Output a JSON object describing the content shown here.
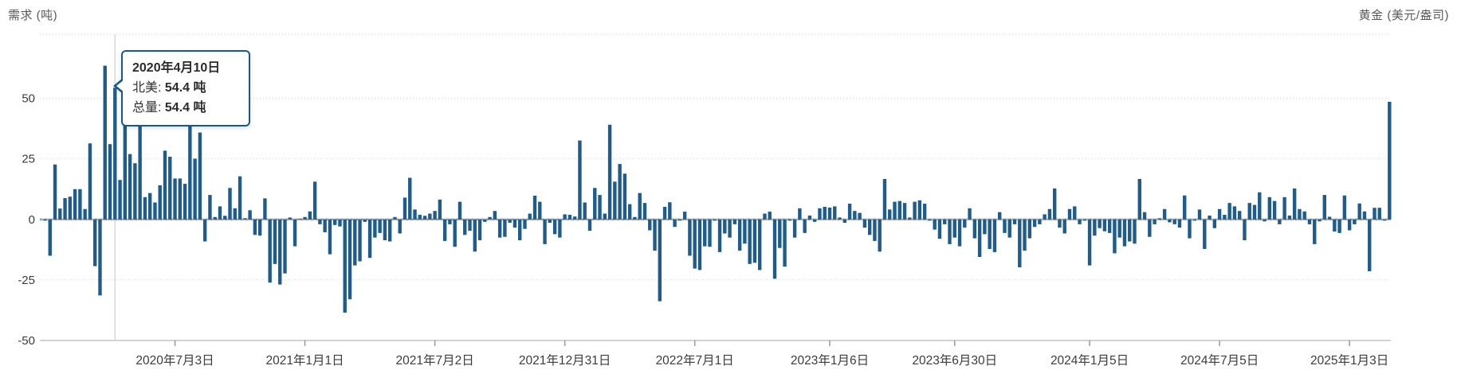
{
  "header": {
    "left_label": "需求 (吨)",
    "right_label": "黄金 (美元/盎司)"
  },
  "tooltip": {
    "title": "2020年4月10日",
    "rows": [
      {
        "label": "北美:",
        "value": "54.4 吨"
      },
      {
        "label": "总量:",
        "value": "54.4 吨"
      }
    ]
  },
  "colors": {
    "bar": "#1f5c8c",
    "tooltip_border": "#17598f",
    "gridline": "#cccccc",
    "baseline": "#c4c4c4",
    "zero_line": "#b5b5b5",
    "zero_line_dash": "#9a9a9a",
    "crosshair": "#d8d8d8",
    "axis_text": "#3c3c3c",
    "header_text": "#595959"
  },
  "chart_data": {
    "type": "bar",
    "title": "",
    "ylabel": "需求 (吨)",
    "ylabel_right": "黄金 (美元/盎司)",
    "unit": "吨",
    "ylim": [
      -50,
      76.5
    ],
    "y_ticks": [
      50,
      25,
      0,
      -25,
      -50
    ],
    "grid": "dotted horizontal",
    "legend_position": "none",
    "highlight_index": 14,
    "x_ticks": [
      {
        "label": "2020年7月3日",
        "index": 26
      },
      {
        "label": "2021年1月1日",
        "index": 52
      },
      {
        "label": "2021年7月2日",
        "index": 78
      },
      {
        "label": "2021年12月31日",
        "index": 104
      },
      {
        "label": "2022年7月1日",
        "index": 130
      },
      {
        "label": "2023年1月6日",
        "index": 157
      },
      {
        "label": "2023年6月30日",
        "index": 182
      },
      {
        "label": "2024年1月5日",
        "index": 209
      },
      {
        "label": "2024年7月5日",
        "index": 235
      },
      {
        "label": "2025年1月3日",
        "index": 261
      }
    ],
    "series": [
      {
        "name": "北美",
        "color": "#1f5c8c",
        "values": [
          -0.5,
          -15,
          22.7,
          4.5,
          8.8,
          9.4,
          12.5,
          12.5,
          4.3,
          31.4,
          -19.3,
          -31.4,
          63.5,
          31.1,
          54.4,
          16.3,
          42,
          27,
          23.2,
          44,
          9.2,
          10.9,
          7,
          14.1,
          28.4,
          25.9,
          16.9,
          16.9,
          14.7,
          39.4,
          25.1,
          35.9,
          -9.1,
          10.1,
          1,
          5.4,
          1.5,
          13,
          4.6,
          17.8,
          0.5,
          3.8,
          -6.4,
          -6.7,
          8.7,
          -26.1,
          -18.4,
          -26.9,
          -22.3,
          0.8,
          -11.1,
          0.3,
          1,
          3.3,
          15.6,
          -2,
          -5.3,
          -14.4,
          -2.3,
          -2.9,
          -38.5,
          -33,
          -19,
          -17.3,
          -1,
          -15.9,
          -7.5,
          -5.6,
          -8.6,
          -9.1,
          1,
          -5.8,
          9,
          17.2,
          4.1,
          1.9,
          1.5,
          2.4,
          3.5,
          8.2,
          -8.9,
          -2,
          -11.3,
          7.3,
          -6.4,
          -4.7,
          -13.3,
          -8.6,
          -1,
          1,
          3.5,
          -7.5,
          -7.2,
          -1.4,
          -3.4,
          -8.6,
          -3.9,
          2.4,
          9.8,
          7.3,
          -10.2,
          -1.4,
          -6.1,
          -7.5,
          2.1,
          1.9,
          1.2,
          32.6,
          7,
          -4.7,
          13,
          10.1,
          2.4,
          39.1,
          15.6,
          22.9,
          18.9,
          6.3,
          1,
          10.9,
          6.8,
          -4.5,
          -12.9,
          -33.8,
          5.2,
          7.1,
          -3.1,
          -0.5,
          3.2,
          -15,
          -20.3,
          -20.9,
          -11.1,
          -11.3,
          -0.5,
          -13.5,
          -5.8,
          -7.5,
          -2,
          -12.9,
          -10,
          -18.4,
          -17.9,
          -20.9,
          2.4,
          3.2,
          -24.5,
          -11.8,
          -19.5,
          -0.5,
          -7.5,
          4.6,
          -5.6,
          1.6,
          -1,
          4.6,
          5.2,
          4.9,
          5.4,
          0.8,
          -1.4,
          6.5,
          3.5,
          2.7,
          -3.4,
          -6.4,
          -8.9,
          -13.3,
          16.7,
          4.1,
          7.3,
          7.6,
          6.8,
          0.8,
          7.3,
          7.9,
          6.5,
          -0.5,
          -4.2,
          -8,
          -2,
          -10.2,
          -7.5,
          -11.1,
          -3.4,
          4.6,
          -7.8,
          -15.5,
          -6.1,
          -12.2,
          -13.5,
          3,
          -5.6,
          -7.5,
          -2,
          -19.8,
          -12.9,
          -7.8,
          -3.1,
          -2,
          2.1,
          4.3,
          12.8,
          -3.4,
          -5.8,
          4.3,
          5.4,
          -2,
          -0.5,
          -19,
          -6.7,
          -3.6,
          -4.9,
          -5.6,
          -14,
          -7.5,
          -11.1,
          -9.1,
          -10,
          16.7,
          3,
          -7.2,
          -2,
          0.5,
          4.3,
          -1.2,
          -2,
          -3.4,
          9.9,
          -7.8,
          -0.5,
          4.1,
          -12.2,
          1.6,
          -3.6,
          4.3,
          1.9,
          6.8,
          5.4,
          3.5,
          -8.6,
          6.8,
          6,
          11.2,
          -0.8,
          9.2,
          7.6,
          -2,
          9.2,
          1.6,
          12.8,
          4.3,
          3.3,
          -2,
          -10.2,
          -0.8,
          10.1,
          1.1,
          -5,
          -5.6,
          9.9,
          -4.5,
          -2,
          6.6,
          3.3,
          -21.4,
          4.8,
          4.8,
          -0.5,
          48.6
        ]
      }
    ]
  }
}
